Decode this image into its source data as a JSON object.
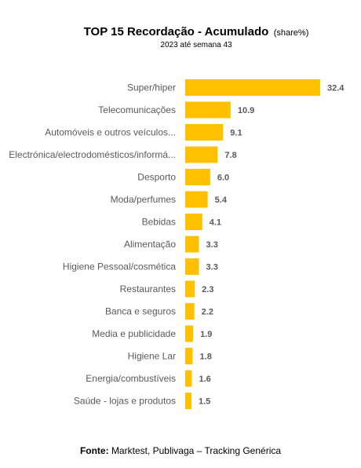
{
  "chart_data": {
    "type": "bar",
    "orientation": "horizontal",
    "title": "TOP 15 Recordação - Acumulado",
    "title_unit": "(share%)",
    "subtitle": "2023 até semana 43",
    "categories": [
      "Super/hiper",
      "Telecomunicações",
      "Automóveis e outros veículos...",
      "Electrónica/electrodomésticos/informá...",
      "Desporto",
      "Moda/perfumes",
      "Bebidas",
      "Alimentação",
      "Higiene Pessoal/cosmética",
      "Restaurantes",
      "Banca e seguros",
      "Media e publicidade",
      "Higiene Lar",
      "Energia/combustíveis",
      "Saúde - lojas e produtos"
    ],
    "values": [
      32.4,
      10.9,
      9.1,
      7.8,
      6.0,
      5.4,
      4.1,
      3.3,
      3.3,
      2.3,
      2.2,
      1.9,
      1.8,
      1.6,
      1.5
    ],
    "value_labels": [
      "32.4",
      "10.9",
      "9.1",
      "7.8",
      "6.0",
      "5.4",
      "4.1",
      "3.3",
      "3.3",
      "2.3",
      "2.2",
      "1.9",
      "1.8",
      "1.6",
      "1.5"
    ],
    "xlim": [
      0,
      32.4
    ],
    "grid": false,
    "legend": "none",
    "bar_color": "#FFC000",
    "label_color": "#595959"
  },
  "source": {
    "label": "Fonte:",
    "text": "Marktest, Publivaga – Tracking Genérica"
  }
}
